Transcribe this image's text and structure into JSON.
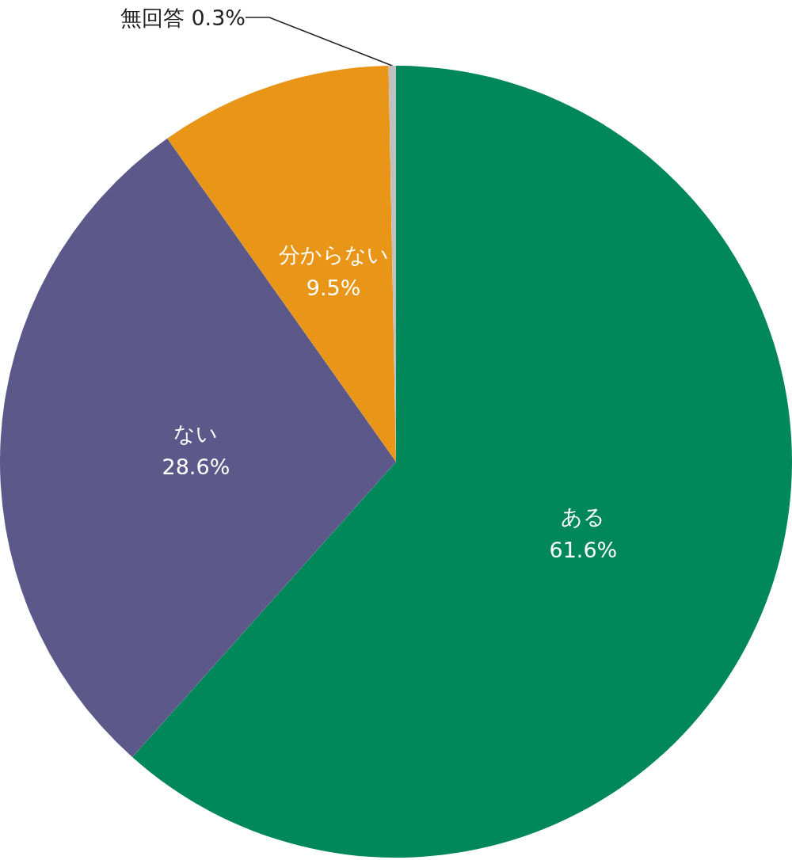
{
  "chart_data": {
    "type": "pie",
    "categories": [
      "ある",
      "ない",
      "分からない",
      "無回答"
    ],
    "values": [
      61.6,
      28.6,
      9.5,
      0.3
    ],
    "colors": [
      "#00875a",
      "#5c5889",
      "#e89518",
      "#c0c0c0"
    ],
    "value_labels": [
      "61.6%",
      "28.6%",
      "9.5%",
      "0.3%"
    ]
  }
}
